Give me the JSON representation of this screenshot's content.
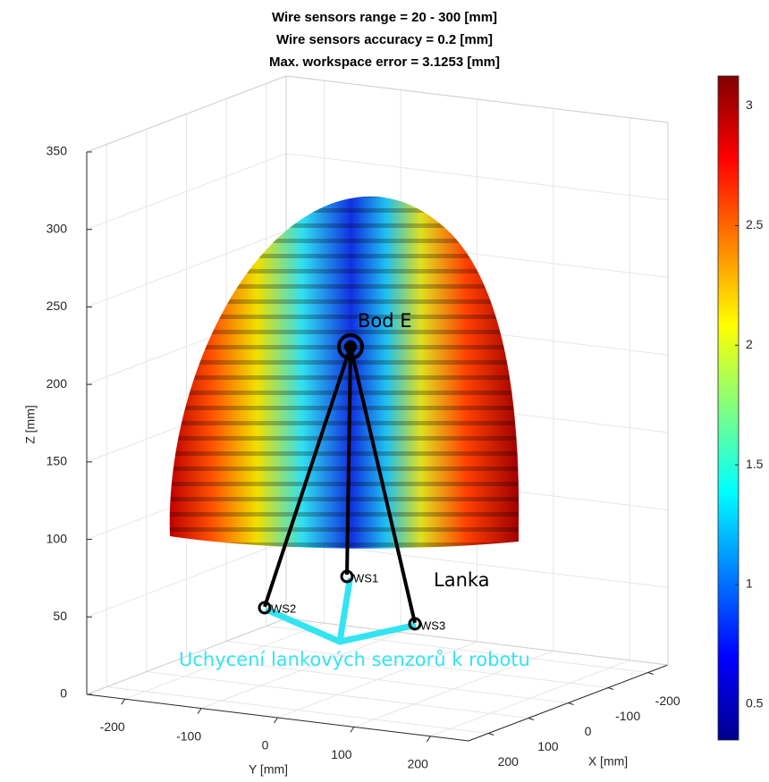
{
  "chart_data": {
    "type": "scatter3d",
    "title": [
      "Wire sensors range = 20 - 300 [mm]",
      "Wire sensors accuracy = 0.2 [mm]",
      "Max. workspace error = 3.1253 [mm]"
    ],
    "xlabel": "X [mm]",
    "ylabel": "Y [mm]",
    "zlabel": "Z [mm]",
    "xlim": [
      -250,
      250
    ],
    "ylim": [
      -250,
      250
    ],
    "zlim": [
      0,
      350
    ],
    "xticks": [
      -200,
      -100,
      0,
      100,
      200
    ],
    "yticks": [
      -200,
      -100,
      0,
      100,
      200
    ],
    "zticks": [
      0,
      50,
      100,
      150,
      200,
      250,
      300,
      350
    ],
    "grid": true,
    "clim": [
      0.35,
      3.1253
    ],
    "cticks": [
      0.5,
      1,
      1.5,
      2,
      2.5,
      3
    ],
    "annotations": {
      "point": "Bod E",
      "wires": "Lanka",
      "sensors": [
        "WS1",
        "WS2",
        "WS3"
      ],
      "mount": "Uchycení lankových senzorů k robotu"
    }
  }
}
